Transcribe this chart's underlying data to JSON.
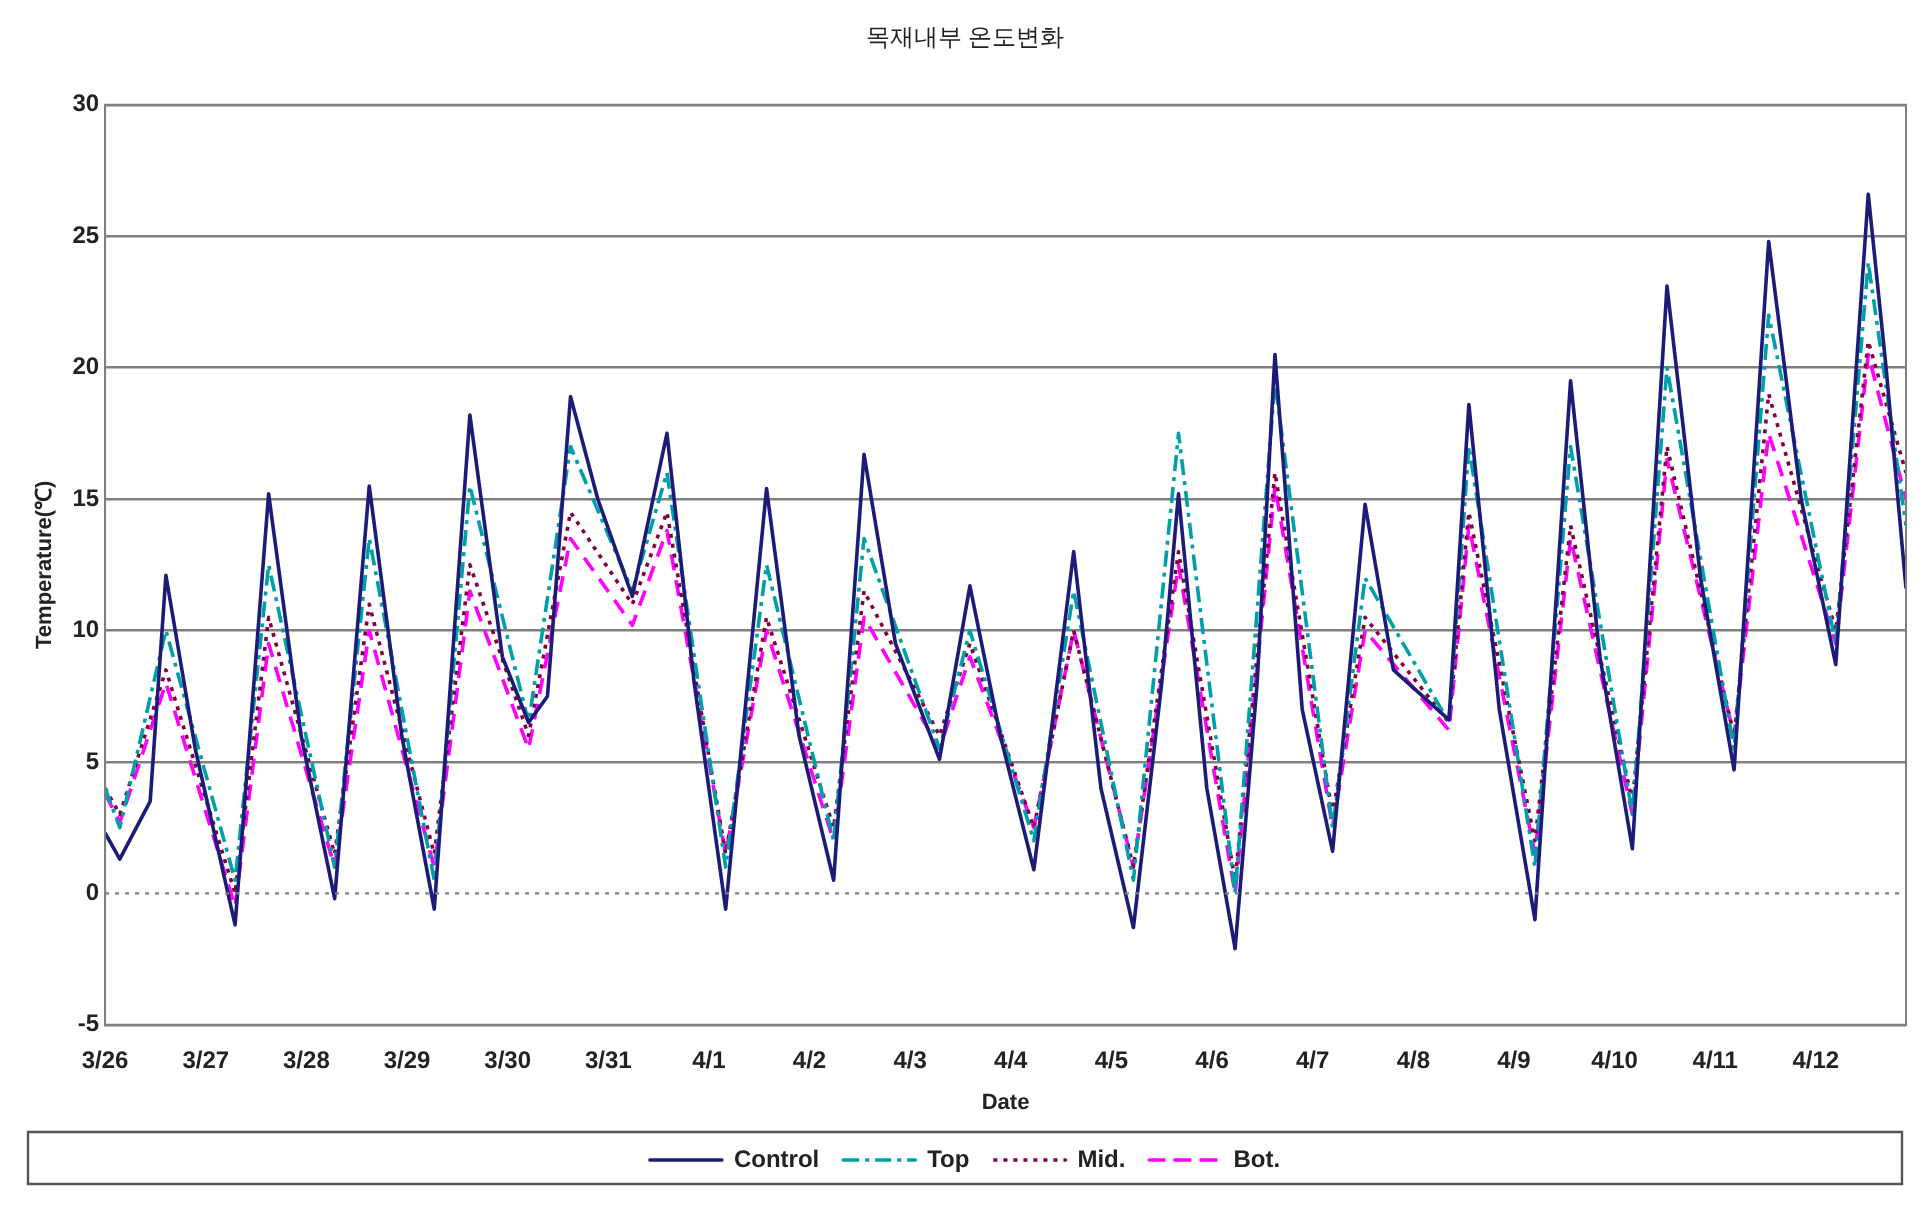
{
  "chart_data": {
    "type": "line",
    "title": "목재내부 온도변화",
    "xlabel": "Date",
    "ylabel": "Temperature(℃)",
    "xlim": [
      "--03-26",
      "--04-12T21:30"
    ],
    "xticks": [
      {
        "value": "--03-26",
        "label": "3/26"
      },
      {
        "value": "--03-27",
        "label": "3/27"
      },
      {
        "value": "--03-28",
        "label": "3/28"
      },
      {
        "value": "--03-29",
        "label": "3/29"
      },
      {
        "value": "--03-30",
        "label": "3/30"
      },
      {
        "value": "--03-31",
        "label": "3/31"
      },
      {
        "value": "--04-01",
        "label": "4/1"
      },
      {
        "value": "--04-02",
        "label": "4/2"
      },
      {
        "value": "--04-03",
        "label": "4/3"
      },
      {
        "value": "--04-04",
        "label": "4/4"
      },
      {
        "value": "--04-05",
        "label": "4/5"
      },
      {
        "value": "--04-06",
        "label": "4/6"
      },
      {
        "value": "--04-07",
        "label": "4/7"
      },
      {
        "value": "--04-08",
        "label": "4/8"
      },
      {
        "value": "--04-09",
        "label": "4/9"
      },
      {
        "value": "--04-10",
        "label": "4/10"
      },
      {
        "value": "--04-11",
        "label": "4/11"
      },
      {
        "value": "--04-12",
        "label": "4/12"
      }
    ],
    "ylim": [
      -5,
      30
    ],
    "yticks": [
      -5,
      0,
      5,
      10,
      15,
      20,
      25,
      30
    ],
    "grid": "y",
    "legend": "bottom",
    "marker": "none",
    "ref_lines": [
      {
        "axis": "y",
        "value": 0,
        "color": "#808080",
        "line_style": "dotted"
      }
    ],
    "x": [
      "--03-26T00:00",
      "--03-26T03:30",
      "--03-26T14:30",
      "--03-27T07:00",
      "--03-27T15:00",
      "--03-28T06:45",
      "--03-28T15:00",
      "--03-29T06:30",
      "--03-29T15:00",
      "--03-30T05:00",
      "--03-30T15:00",
      "--03-31T05:45",
      "--03-31T14:00",
      "--04-01T04:00",
      "--04-01T13:45",
      "--04-02T05:45",
      "--04-02T13:00",
      "--04-03T07:00",
      "--04-03T14:15",
      "--04-04T05:30",
      "--04-04T15:00",
      "--04-05T05:15",
      "--04-05T16:00",
      "--04-06T05:30",
      "--04-06T15:00",
      "--04-07T04:45",
      "--04-07T12:30",
      "--04-08T08:30",
      "--04-08T13:15",
      "--04-09T05:00",
      "--04-09T13:30",
      "--04-10T04:15",
      "--04-10T12:30",
      "--04-11T04:30",
      "--04-11T12:45",
      "--04-12T04:45",
      "--04-12T12:30",
      "--04-12T21:30"
    ],
    "series": [
      {
        "name": "Control",
        "color": "#1c1c78",
        "line_style": "solid",
        "x": [
          "--03-26T00:00",
          "--03-26T03:30",
          "--03-26T10:45",
          "--03-26T14:30",
          "--03-26T21:30",
          "--03-27T07:00",
          "--03-27T15:00",
          "--03-27T22:45",
          "--03-28T06:45",
          "--03-28T15:00",
          "--03-28T22:45",
          "--03-29T06:30",
          "--03-29T15:00",
          "--03-29T22:45",
          "--03-30T05:00",
          "--03-30T09:30",
          "--03-30T15:00",
          "--03-30T21:30",
          "--03-31T05:45",
          "--03-31T14:00",
          "--03-31T20:30",
          "--04-01T04:00",
          "--04-01T13:45",
          "--04-01T21:30",
          "--04-02T05:45",
          "--04-02T13:00",
          "--04-02T20:30",
          "--04-03T07:00",
          "--04-03T14:15",
          "--04-03T21:30",
          "--04-04T05:30",
          "--04-04T15:00",
          "--04-04T21:30",
          "--04-05T05:15",
          "--04-05T12:00",
          "--04-05T16:00",
          "--04-05T22:45",
          "--04-06T05:30",
          "--04-06T10:45",
          "--04-06T15:00",
          "--04-06T21:30",
          "--04-07T04:45",
          "--04-07T12:30",
          "--04-07T19:15",
          "--04-08T08:30",
          "--04-08T13:15",
          "--04-08T20:30",
          "--04-09T05:00",
          "--04-09T13:30",
          "--04-09T20:30",
          "--04-10T04:15",
          "--04-10T12:30",
          "--04-10T20:30",
          "--04-11T04:30",
          "--04-11T12:45",
          "--04-11T20:30",
          "--04-12T04:45",
          "--04-12T12:30",
          "--04-12T16:45",
          "--04-12T21:30"
        ],
        "values": [
          2.3,
          1.3,
          3.5,
          12.1,
          5.5,
          -1.2,
          15.2,
          6,
          -0.2,
          15.5,
          6,
          -0.6,
          18.2,
          9,
          6.5,
          7.5,
          18.9,
          15,
          11.3,
          17.5,
          8,
          -0.6,
          15.4,
          6,
          0.5,
          16.7,
          9.5,
          5.1,
          11.7,
          6,
          0.9,
          13,
          4,
          -1.3,
          8,
          15.2,
          4,
          -2.1,
          8,
          20.5,
          7,
          1.6,
          14.8,
          8.5,
          6.6,
          18.6,
          7,
          -1,
          19.5,
          9,
          1.7,
          23.1,
          12,
          4.7,
          24.8,
          15,
          8.7,
          26.6,
          20,
          11.6
        ]
      },
      {
        "name": "Top",
        "color": "#00a0a8",
        "line_style": "dashdot",
        "values": [
          4,
          2.5,
          10,
          0.5,
          12.5,
          1,
          13.5,
          0.5,
          15.5,
          6.5,
          17,
          11.5,
          16,
          1,
          12.5,
          2,
          13.5,
          5.5,
          10,
          2,
          11.5,
          0.5,
          17.5,
          0,
          19.5,
          2.5,
          12,
          6.5,
          17,
          1,
          17,
          3,
          20,
          5.5,
          22,
          9.5,
          24,
          14
        ]
      },
      {
        "name": "Mid.",
        "color": "#800040",
        "line_style": "dotted",
        "values": [
          4,
          3,
          8.5,
          0,
          10.5,
          1.5,
          11,
          1.5,
          12.5,
          6,
          14.5,
          11,
          14.5,
          1.5,
          10.5,
          2.5,
          11.5,
          6,
          9.5,
          2.5,
          10,
          1,
          13,
          0.5,
          16,
          3,
          10.5,
          6.5,
          14.5,
          2,
          14,
          3.5,
          17,
          6,
          19,
          10,
          21,
          16
        ]
      },
      {
        "name": "Bot.",
        "color": "#ff00ff",
        "line_style": "dashed",
        "values": [
          3.8,
          2.7,
          8,
          -0.5,
          9.5,
          1,
          10,
          1,
          11.5,
          5.5,
          13.5,
          10.2,
          13.8,
          1.5,
          10,
          2,
          10.5,
          5.5,
          9,
          2.5,
          10,
          1,
          12.5,
          0,
          15.5,
          2.5,
          10,
          6.2,
          14,
          1.5,
          13.5,
          3,
          16.5,
          6,
          17.5,
          9.5,
          20.5,
          15
        ]
      }
    ]
  }
}
